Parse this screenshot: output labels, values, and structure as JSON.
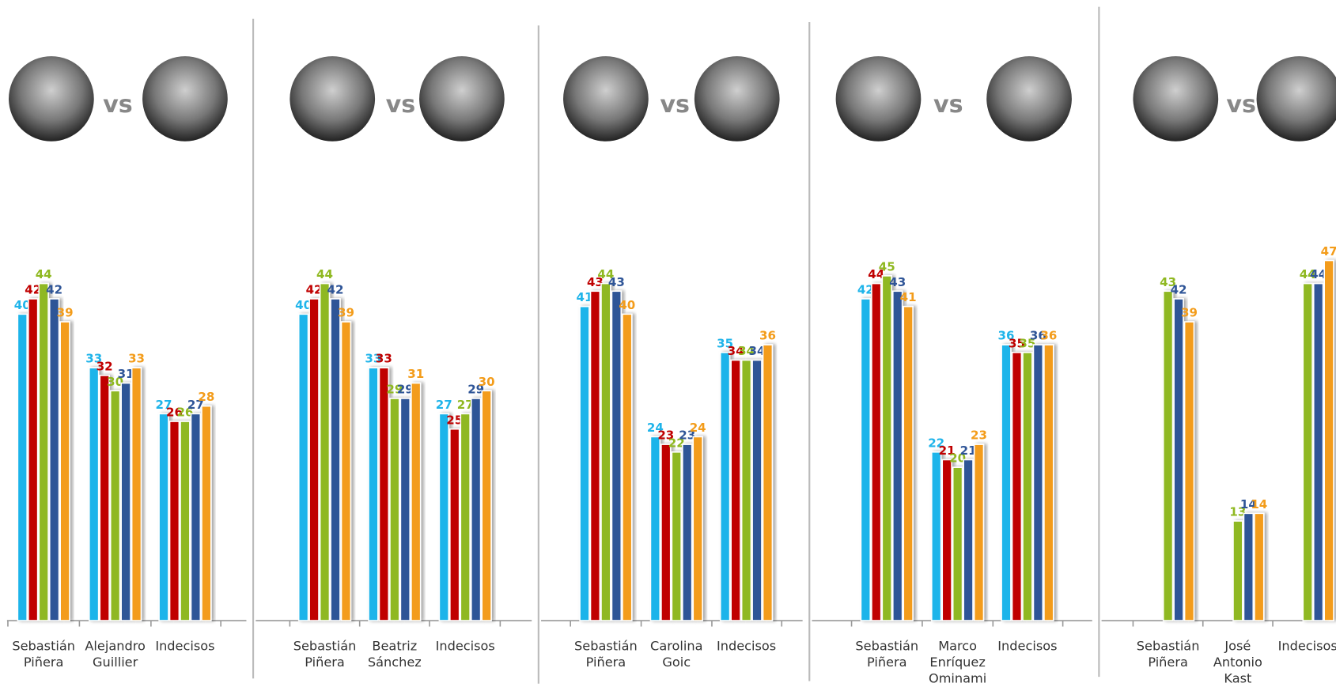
{
  "chart_data": [
    {
      "type": "bar",
      "annotation": "vs",
      "categories": [
        "Sebastián Piñera",
        "Alejandro Guillier",
        "Indecisos"
      ],
      "ylim": [
        0,
        50
      ],
      "series": [
        {
          "color": "#1fb4ea",
          "values": [
            40,
            33,
            27
          ]
        },
        {
          "color": "#c00000",
          "values": [
            42,
            32,
            26
          ]
        },
        {
          "color": "#8fb820",
          "values": [
            44,
            30,
            26
          ]
        },
        {
          "color": "#2f5597",
          "values": [
            42,
            31,
            27
          ]
        },
        {
          "color": "#f39c1a",
          "values": [
            39,
            33,
            28
          ]
        }
      ]
    },
    {
      "type": "bar",
      "annotation": "vs",
      "categories": [
        "Sebastián Piñera",
        "Beatriz Sánchez",
        "Indecisos"
      ],
      "ylim": [
        0,
        50
      ],
      "series": [
        {
          "color": "#1fb4ea",
          "values": [
            40,
            33,
            27
          ]
        },
        {
          "color": "#c00000",
          "values": [
            42,
            33,
            25
          ]
        },
        {
          "color": "#8fb820",
          "values": [
            44,
            29,
            27
          ]
        },
        {
          "color": "#2f5597",
          "values": [
            42,
            29,
            29
          ]
        },
        {
          "color": "#f39c1a",
          "values": [
            39,
            31,
            30
          ]
        }
      ]
    },
    {
      "type": "bar",
      "annotation": "vs",
      "categories": [
        "Sebastián Piñera",
        "Carolina Goic",
        "Indecisos"
      ],
      "ylim": [
        0,
        50
      ],
      "series": [
        {
          "color": "#1fb4ea",
          "values": [
            41,
            24,
            35
          ]
        },
        {
          "color": "#c00000",
          "values": [
            43,
            23,
            34
          ]
        },
        {
          "color": "#8fb820",
          "values": [
            44,
            22,
            34
          ]
        },
        {
          "color": "#2f5597",
          "values": [
            43,
            23,
            34
          ]
        },
        {
          "color": "#f39c1a",
          "values": [
            40,
            24,
            36
          ]
        }
      ]
    },
    {
      "type": "bar",
      "annotation": "vs",
      "categories": [
        "Sebastián Piñera",
        "Marco Enríquez Ominami",
        "Indecisos"
      ],
      "ylim": [
        0,
        50
      ],
      "series": [
        {
          "color": "#1fb4ea",
          "values": [
            42,
            22,
            36
          ]
        },
        {
          "color": "#c00000",
          "values": [
            44,
            21,
            35
          ]
        },
        {
          "color": "#8fb820",
          "values": [
            45,
            20,
            35
          ]
        },
        {
          "color": "#2f5597",
          "values": [
            43,
            21,
            36
          ]
        },
        {
          "color": "#f39c1a",
          "values": [
            41,
            23,
            36
          ]
        }
      ]
    },
    {
      "type": "bar",
      "annotation": "vs",
      "categories": [
        "Sebastián Piñera",
        "José Antonio Kast",
        "Indecisos"
      ],
      "ylim": [
        0,
        50
      ],
      "series": [
        {
          "color": "#1fb4ea",
          "values": [
            null,
            null,
            null
          ]
        },
        {
          "color": "#c00000",
          "values": [
            null,
            null,
            null
          ]
        },
        {
          "color": "#8fb820",
          "values": [
            43,
            13,
            44
          ]
        },
        {
          "color": "#2f5597",
          "values": [
            42,
            14,
            44
          ]
        },
        {
          "color": "#f39c1a",
          "values": [
            39,
            14,
            47
          ]
        }
      ]
    }
  ]
}
